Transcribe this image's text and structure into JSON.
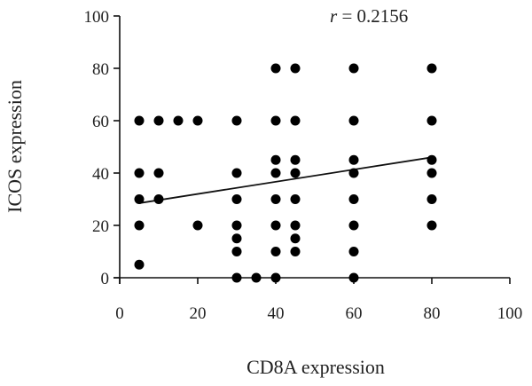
{
  "chart_data": {
    "type": "scatter",
    "xlabel": "CD8A expression",
    "ylabel": "ICOS expression",
    "annotation": {
      "var": "r",
      "text": " = 0.2156"
    },
    "xlim": [
      0,
      100
    ],
    "ylim": [
      0,
      100
    ],
    "xticks": [
      "0",
      "20",
      "40",
      "60",
      "80",
      "100"
    ],
    "yticks": [
      "0",
      "20",
      "40",
      "60",
      "80",
      "100"
    ],
    "grid": false,
    "marker_color": "#000000",
    "points": [
      {
        "x": 5,
        "y": 60
      },
      {
        "x": 5,
        "y": 40
      },
      {
        "x": 5,
        "y": 30
      },
      {
        "x": 5,
        "y": 20
      },
      {
        "x": 5,
        "y": 5
      },
      {
        "x": 10,
        "y": 60
      },
      {
        "x": 10,
        "y": 40
      },
      {
        "x": 10,
        "y": 30
      },
      {
        "x": 15,
        "y": 60
      },
      {
        "x": 20,
        "y": 60
      },
      {
        "x": 20,
        "y": 20
      },
      {
        "x": 30,
        "y": 60
      },
      {
        "x": 30,
        "y": 40
      },
      {
        "x": 30,
        "y": 30
      },
      {
        "x": 30,
        "y": 20
      },
      {
        "x": 30,
        "y": 15
      },
      {
        "x": 30,
        "y": 10
      },
      {
        "x": 30,
        "y": 0
      },
      {
        "x": 35,
        "y": 0
      },
      {
        "x": 40,
        "y": 80
      },
      {
        "x": 40,
        "y": 60
      },
      {
        "x": 40,
        "y": 45
      },
      {
        "x": 40,
        "y": 40
      },
      {
        "x": 40,
        "y": 30
      },
      {
        "x": 40,
        "y": 20
      },
      {
        "x": 40,
        "y": 10
      },
      {
        "x": 40,
        "y": 0
      },
      {
        "x": 45,
        "y": 80
      },
      {
        "x": 45,
        "y": 60
      },
      {
        "x": 45,
        "y": 45
      },
      {
        "x": 45,
        "y": 40
      },
      {
        "x": 45,
        "y": 30
      },
      {
        "x": 45,
        "y": 20
      },
      {
        "x": 45,
        "y": 15
      },
      {
        "x": 45,
        "y": 10
      },
      {
        "x": 60,
        "y": 80
      },
      {
        "x": 60,
        "y": 60
      },
      {
        "x": 60,
        "y": 45
      },
      {
        "x": 60,
        "y": 40
      },
      {
        "x": 60,
        "y": 30
      },
      {
        "x": 60,
        "y": 20
      },
      {
        "x": 60,
        "y": 10
      },
      {
        "x": 60,
        "y": 0
      },
      {
        "x": 80,
        "y": 80
      },
      {
        "x": 80,
        "y": 60
      },
      {
        "x": 80,
        "y": 45
      },
      {
        "x": 80,
        "y": 40
      },
      {
        "x": 80,
        "y": 30
      },
      {
        "x": 80,
        "y": 20
      }
    ],
    "trendline": {
      "x1": 5,
      "y1": 28.5,
      "x2": 80,
      "y2": 46
    }
  }
}
